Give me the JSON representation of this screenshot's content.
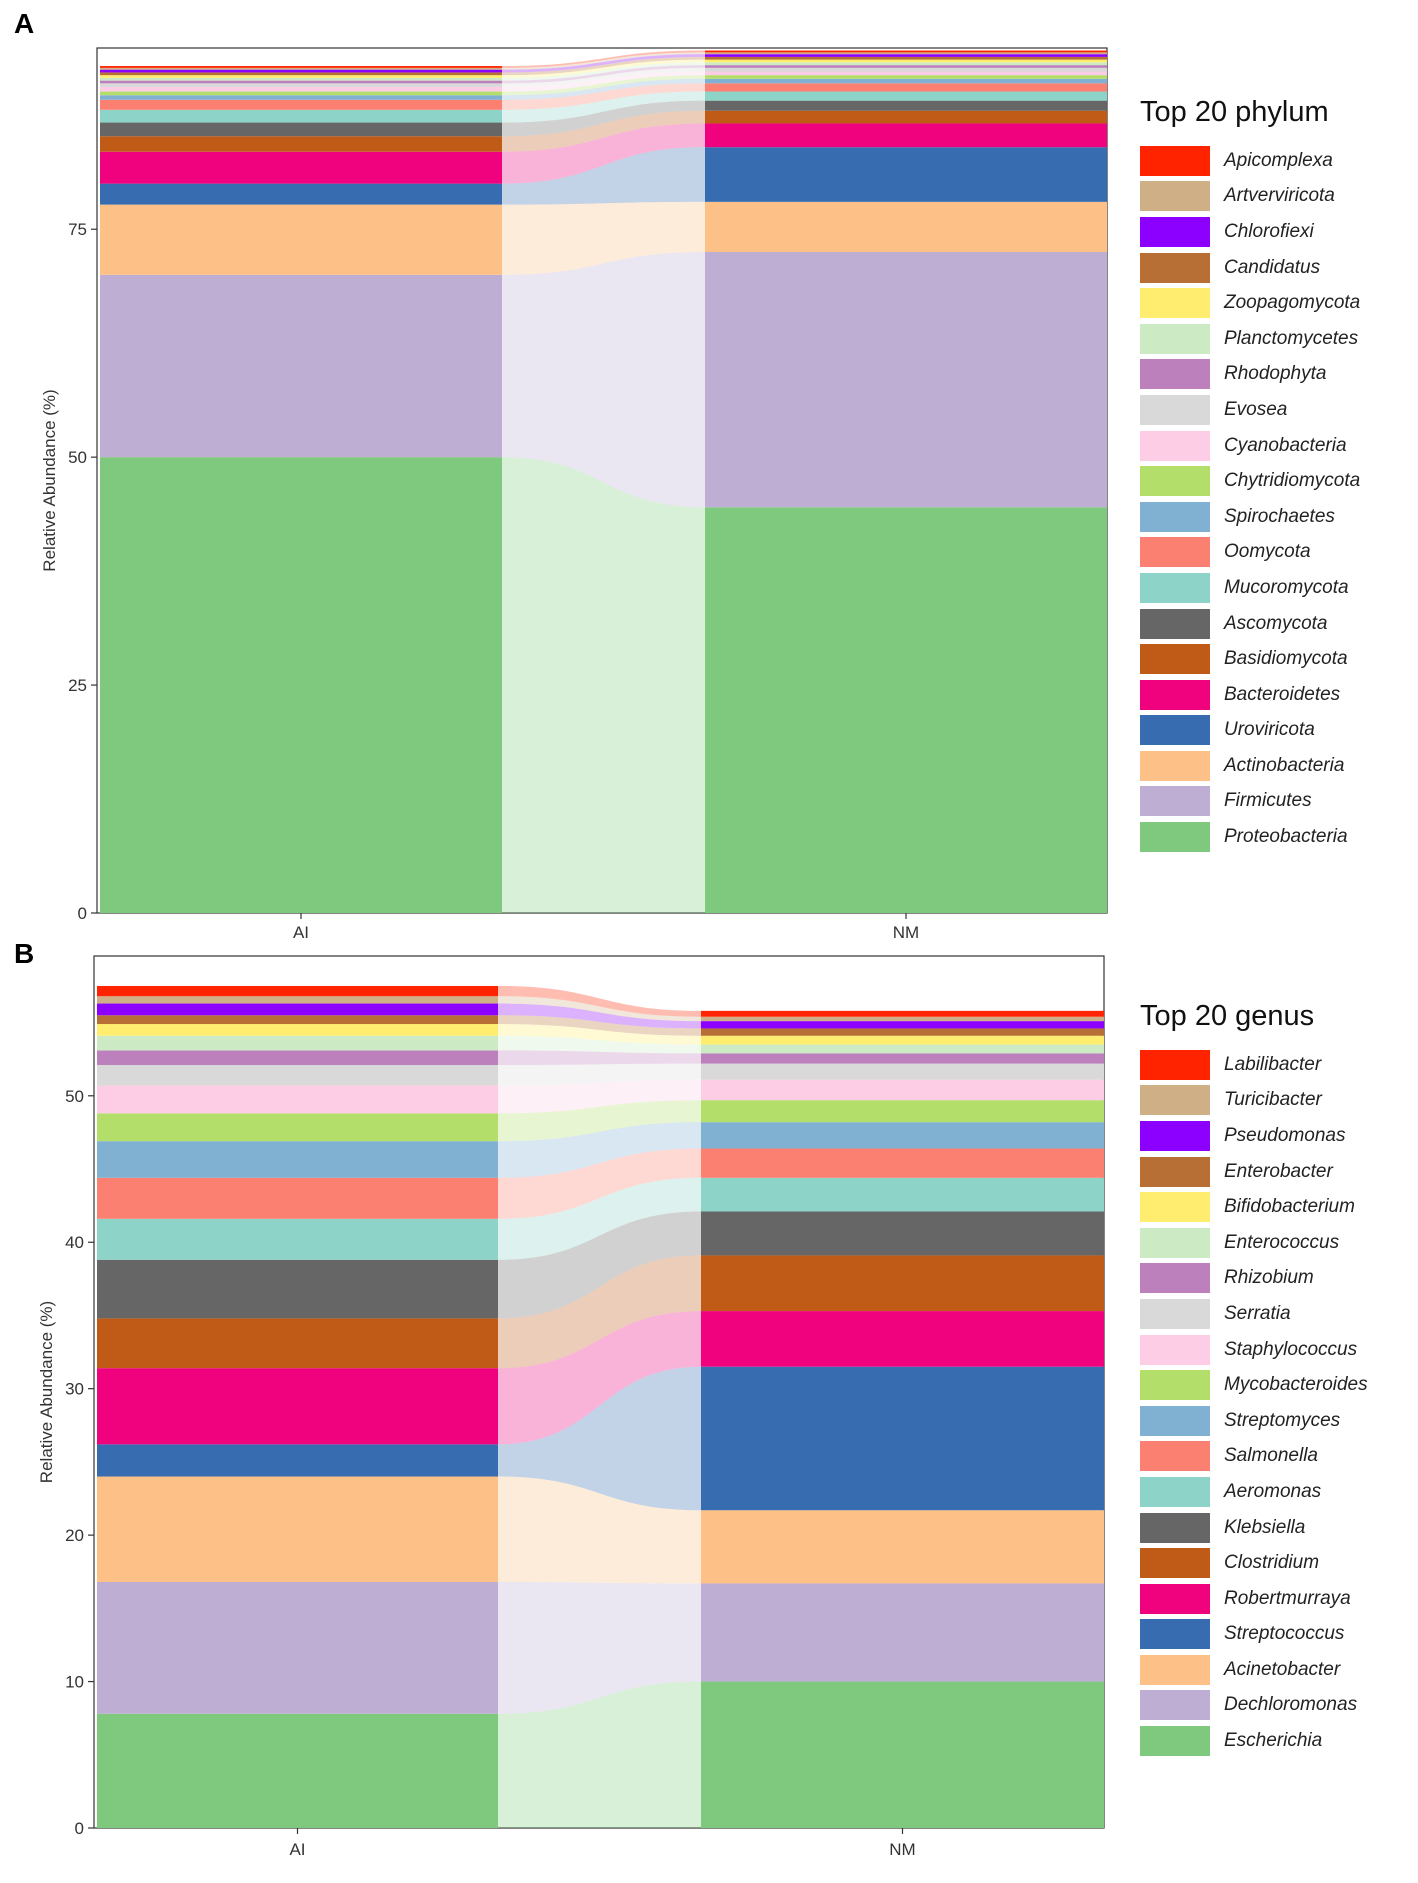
{
  "chart_data": [
    {
      "panel_label": "A",
      "type": "stacked-bar-alluvial",
      "title": "",
      "xlabel": "",
      "ylabel": "Relative Abundance (%)",
      "ylim": [
        0,
        94
      ],
      "yticks": [
        "0",
        "25",
        "50",
        "75"
      ],
      "ytick_values": [
        0,
        25,
        50,
        75
      ],
      "categories": [
        "AI",
        "NM"
      ],
      "legend_title": "Top 20 phylum",
      "legend_placement": "right",
      "series": [
        {
          "name": "Proteobacteria",
          "color": "#7FC97F",
          "values": [
            50.0,
            44.5
          ]
        },
        {
          "name": "Firmicutes",
          "color": "#BEAED4",
          "values": [
            20.0,
            28.0
          ]
        },
        {
          "name": "Actinobacteria",
          "color": "#FDC086",
          "values": [
            7.7,
            5.5
          ]
        },
        {
          "name": "Uroviricota",
          "color": "#386CB0",
          "values": [
            2.3,
            6.0
          ]
        },
        {
          "name": "Bacteroidetes",
          "color": "#F0027F",
          "values": [
            3.5,
            2.6
          ]
        },
        {
          "name": "Basidiomycota",
          "color": "#BF5B17",
          "values": [
            1.7,
            1.4
          ]
        },
        {
          "name": "Ascomycota",
          "color": "#666666",
          "values": [
            1.5,
            1.1
          ]
        },
        {
          "name": "Mucoromycota",
          "color": "#8DD3C7",
          "values": [
            1.4,
            1.0
          ]
        },
        {
          "name": "Oomycota",
          "color": "#FB8072",
          "values": [
            1.1,
            0.9
          ]
        },
        {
          "name": "Spirochaetes",
          "color": "#80B1D3",
          "values": [
            0.5,
            0.5
          ]
        },
        {
          "name": "Chytridiomycota",
          "color": "#B3DE69",
          "values": [
            0.4,
            0.4
          ]
        },
        {
          "name": "Cyanobacteria",
          "color": "#FCCDE5",
          "values": [
            0.5,
            0.4
          ]
        },
        {
          "name": "Evosea",
          "color": "#D9D9D9",
          "values": [
            0.4,
            0.4
          ]
        },
        {
          "name": "Rhodophyta",
          "color": "#BC80BD",
          "values": [
            0.3,
            0.3
          ]
        },
        {
          "name": "Planctomycetes",
          "color": "#CCEBC5",
          "values": [
            0.3,
            0.3
          ]
        },
        {
          "name": "Zoopagomycota",
          "color": "#FFED6F",
          "values": [
            0.3,
            0.3
          ]
        },
        {
          "name": "Candidatus",
          "color": "#B86F35",
          "values": [
            0.3,
            0.3
          ]
        },
        {
          "name": "Chlorofiexi",
          "color": "#8C00FF",
          "values": [
            0.3,
            0.3
          ]
        },
        {
          "name": "Artverviricota",
          "color": "#CFAF85",
          "values": [
            0.2,
            0.2
          ]
        },
        {
          "name": "Apicomplexa",
          "color": "#FF2300",
          "values": [
            0.2,
            0.2
          ]
        }
      ]
    },
    {
      "panel_label": "B",
      "type": "stacked-bar-alluvial",
      "title": "",
      "xlabel": "",
      "ylabel": "Relative Abundance (%)",
      "ylim": [
        0,
        59
      ],
      "yticks": [
        "0",
        "10",
        "20",
        "30",
        "40",
        "50"
      ],
      "ytick_values": [
        0,
        10,
        20,
        30,
        40,
        50
      ],
      "categories": [
        "AI",
        "NM"
      ],
      "legend_title": "Top 20 genus",
      "legend_placement": "right",
      "series": [
        {
          "name": "Escherichia",
          "color": "#7FC97F",
          "values": [
            7.8,
            10.0
          ]
        },
        {
          "name": "Dechloromonas",
          "color": "#BEAED4",
          "values": [
            9.0,
            6.7
          ]
        },
        {
          "name": "Acinetobacter",
          "color": "#FDC086",
          "values": [
            7.2,
            5.0
          ]
        },
        {
          "name": "Streptococcus",
          "color": "#386CB0",
          "values": [
            2.2,
            9.8
          ]
        },
        {
          "name": "Robertmurraya",
          "color": "#F0027F",
          "values": [
            5.2,
            3.8
          ]
        },
        {
          "name": "Clostridium",
          "color": "#BF5B17",
          "values": [
            3.4,
            3.8
          ]
        },
        {
          "name": "Klebsiella",
          "color": "#666666",
          "values": [
            4.0,
            3.0
          ]
        },
        {
          "name": "Aeromonas",
          "color": "#8DD3C7",
          "values": [
            2.8,
            2.3
          ]
        },
        {
          "name": "Salmonella",
          "color": "#FB8072",
          "values": [
            2.8,
            2.0
          ]
        },
        {
          "name": "Streptomyces",
          "color": "#80B1D3",
          "values": [
            2.5,
            1.8
          ]
        },
        {
          "name": "Mycobacteroides",
          "color": "#B3DE69",
          "values": [
            1.9,
            1.5
          ]
        },
        {
          "name": "Staphylococcus",
          "color": "#FCCDE5",
          "values": [
            1.9,
            1.4
          ]
        },
        {
          "name": "Serratia",
          "color": "#D9D9D9",
          "values": [
            1.4,
            1.1
          ]
        },
        {
          "name": "Rhizobium",
          "color": "#BC80BD",
          "values": [
            1.0,
            0.7
          ]
        },
        {
          "name": "Enterococcus",
          "color": "#CCEBC5",
          "values": [
            1.0,
            0.6
          ]
        },
        {
          "name": "Bifidobacterium",
          "color": "#FFED6F",
          "values": [
            0.8,
            0.6
          ]
        },
        {
          "name": "Enterobacter",
          "color": "#B86F35",
          "values": [
            0.6,
            0.5
          ]
        },
        {
          "name": "Pseudomonas",
          "color": "#8C00FF",
          "values": [
            0.8,
            0.5
          ]
        },
        {
          "name": "Turicibacter",
          "color": "#CFAF85",
          "values": [
            0.5,
            0.3
          ]
        },
        {
          "name": "Labilibacter",
          "color": "#FF2300",
          "values": [
            0.7,
            0.4
          ]
        }
      ]
    }
  ]
}
